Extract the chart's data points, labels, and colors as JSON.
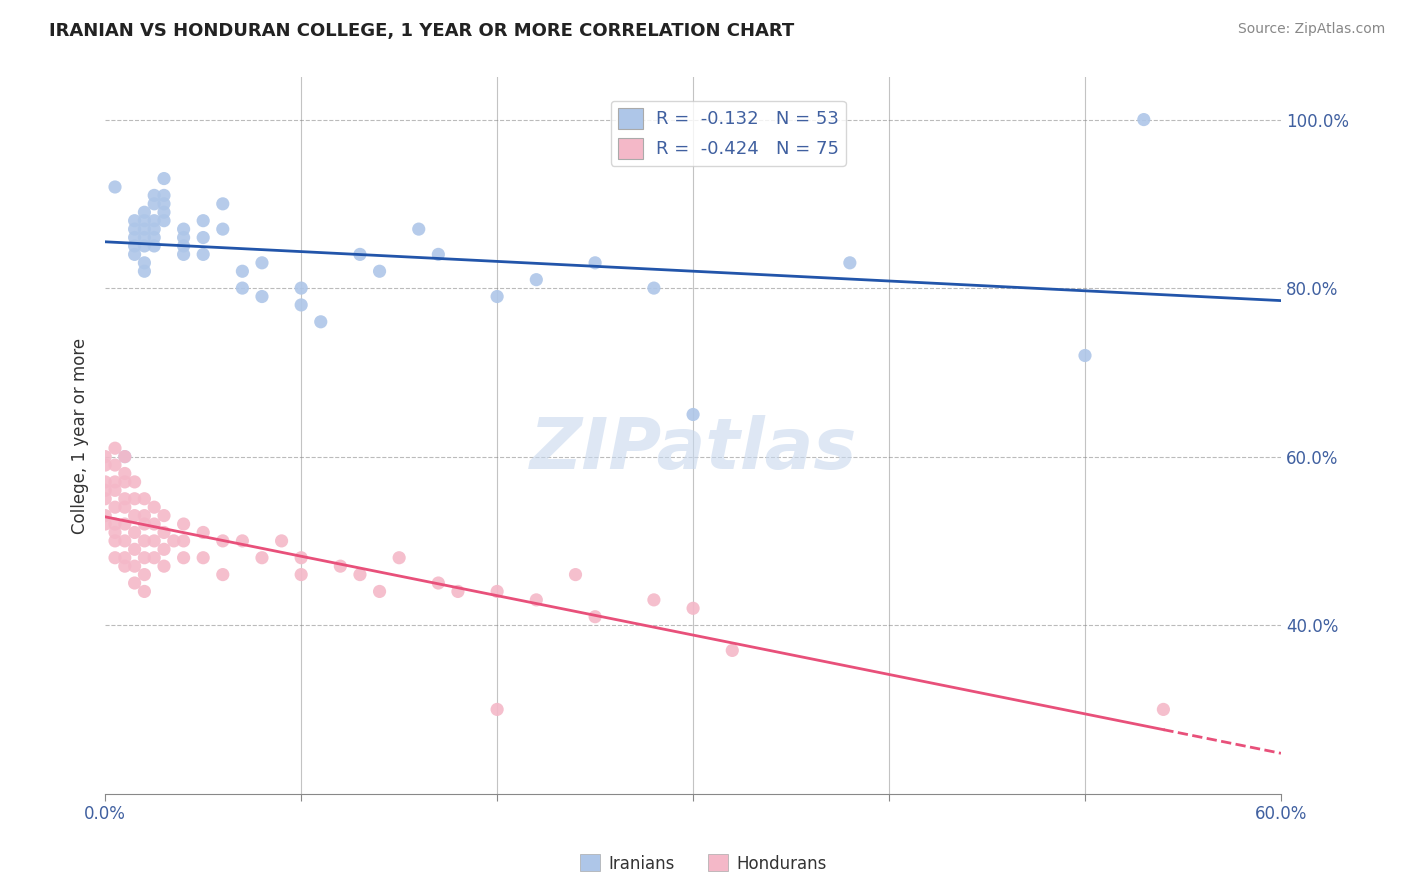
{
  "title": "IRANIAN VS HONDURAN COLLEGE, 1 YEAR OR MORE CORRELATION CHART",
  "source": "Source: ZipAtlas.com",
  "ylabel": "College, 1 year or more",
  "xlim": [
    0.0,
    0.6
  ],
  "ylim": [
    0.2,
    1.05
  ],
  "color_iranian": "#aec6e8",
  "color_honduran": "#f4b8c8",
  "line_color_iranian": "#2255aa",
  "line_color_honduran": "#e8507a",
  "watermark_text": "ZIPatlas",
  "legend_text1": "R =  -0.132   N = 53",
  "legend_text2": "R =  -0.424   N = 75",
  "iranian_points": [
    [
      0.005,
      0.92
    ],
    [
      0.01,
      0.6
    ],
    [
      0.015,
      0.88
    ],
    [
      0.015,
      0.87
    ],
    [
      0.015,
      0.86
    ],
    [
      0.015,
      0.85
    ],
    [
      0.015,
      0.84
    ],
    [
      0.02,
      0.89
    ],
    [
      0.02,
      0.88
    ],
    [
      0.02,
      0.87
    ],
    [
      0.02,
      0.86
    ],
    [
      0.02,
      0.85
    ],
    [
      0.02,
      0.83
    ],
    [
      0.02,
      0.82
    ],
    [
      0.025,
      0.91
    ],
    [
      0.025,
      0.9
    ],
    [
      0.025,
      0.88
    ],
    [
      0.025,
      0.87
    ],
    [
      0.025,
      0.86
    ],
    [
      0.025,
      0.85
    ],
    [
      0.03,
      0.93
    ],
    [
      0.03,
      0.91
    ],
    [
      0.03,
      0.9
    ],
    [
      0.03,
      0.89
    ],
    [
      0.03,
      0.88
    ],
    [
      0.04,
      0.87
    ],
    [
      0.04,
      0.86
    ],
    [
      0.04,
      0.85
    ],
    [
      0.04,
      0.84
    ],
    [
      0.05,
      0.88
    ],
    [
      0.05,
      0.86
    ],
    [
      0.05,
      0.84
    ],
    [
      0.06,
      0.9
    ],
    [
      0.06,
      0.87
    ],
    [
      0.07,
      0.82
    ],
    [
      0.07,
      0.8
    ],
    [
      0.08,
      0.83
    ],
    [
      0.08,
      0.79
    ],
    [
      0.1,
      0.8
    ],
    [
      0.1,
      0.78
    ],
    [
      0.11,
      0.76
    ],
    [
      0.13,
      0.84
    ],
    [
      0.14,
      0.82
    ],
    [
      0.16,
      0.87
    ],
    [
      0.17,
      0.84
    ],
    [
      0.2,
      0.79
    ],
    [
      0.22,
      0.81
    ],
    [
      0.25,
      0.83
    ],
    [
      0.28,
      0.8
    ],
    [
      0.3,
      0.65
    ],
    [
      0.38,
      0.83
    ],
    [
      0.5,
      0.72
    ],
    [
      0.53,
      1.0
    ]
  ],
  "honduran_points": [
    [
      0.0,
      0.6
    ],
    [
      0.0,
      0.59
    ],
    [
      0.0,
      0.57
    ],
    [
      0.0,
      0.56
    ],
    [
      0.0,
      0.55
    ],
    [
      0.0,
      0.53
    ],
    [
      0.0,
      0.52
    ],
    [
      0.005,
      0.61
    ],
    [
      0.005,
      0.59
    ],
    [
      0.005,
      0.57
    ],
    [
      0.005,
      0.56
    ],
    [
      0.005,
      0.54
    ],
    [
      0.005,
      0.52
    ],
    [
      0.005,
      0.51
    ],
    [
      0.005,
      0.5
    ],
    [
      0.005,
      0.48
    ],
    [
      0.01,
      0.6
    ],
    [
      0.01,
      0.58
    ],
    [
      0.01,
      0.57
    ],
    [
      0.01,
      0.55
    ],
    [
      0.01,
      0.54
    ],
    [
      0.01,
      0.52
    ],
    [
      0.01,
      0.5
    ],
    [
      0.01,
      0.48
    ],
    [
      0.01,
      0.47
    ],
    [
      0.015,
      0.57
    ],
    [
      0.015,
      0.55
    ],
    [
      0.015,
      0.53
    ],
    [
      0.015,
      0.51
    ],
    [
      0.015,
      0.49
    ],
    [
      0.015,
      0.47
    ],
    [
      0.015,
      0.45
    ],
    [
      0.02,
      0.55
    ],
    [
      0.02,
      0.53
    ],
    [
      0.02,
      0.52
    ],
    [
      0.02,
      0.5
    ],
    [
      0.02,
      0.48
    ],
    [
      0.02,
      0.46
    ],
    [
      0.02,
      0.44
    ],
    [
      0.025,
      0.54
    ],
    [
      0.025,
      0.52
    ],
    [
      0.025,
      0.5
    ],
    [
      0.025,
      0.48
    ],
    [
      0.03,
      0.53
    ],
    [
      0.03,
      0.51
    ],
    [
      0.03,
      0.49
    ],
    [
      0.03,
      0.47
    ],
    [
      0.035,
      0.5
    ],
    [
      0.04,
      0.52
    ],
    [
      0.04,
      0.5
    ],
    [
      0.04,
      0.48
    ],
    [
      0.05,
      0.51
    ],
    [
      0.05,
      0.48
    ],
    [
      0.06,
      0.5
    ],
    [
      0.06,
      0.46
    ],
    [
      0.07,
      0.5
    ],
    [
      0.08,
      0.48
    ],
    [
      0.09,
      0.5
    ],
    [
      0.1,
      0.48
    ],
    [
      0.1,
      0.46
    ],
    [
      0.12,
      0.47
    ],
    [
      0.13,
      0.46
    ],
    [
      0.14,
      0.44
    ],
    [
      0.15,
      0.48
    ],
    [
      0.17,
      0.45
    ],
    [
      0.18,
      0.44
    ],
    [
      0.2,
      0.3
    ],
    [
      0.2,
      0.44
    ],
    [
      0.22,
      0.43
    ],
    [
      0.24,
      0.46
    ],
    [
      0.25,
      0.41
    ],
    [
      0.28,
      0.43
    ],
    [
      0.3,
      0.42
    ],
    [
      0.32,
      0.37
    ],
    [
      0.54,
      0.3
    ]
  ]
}
